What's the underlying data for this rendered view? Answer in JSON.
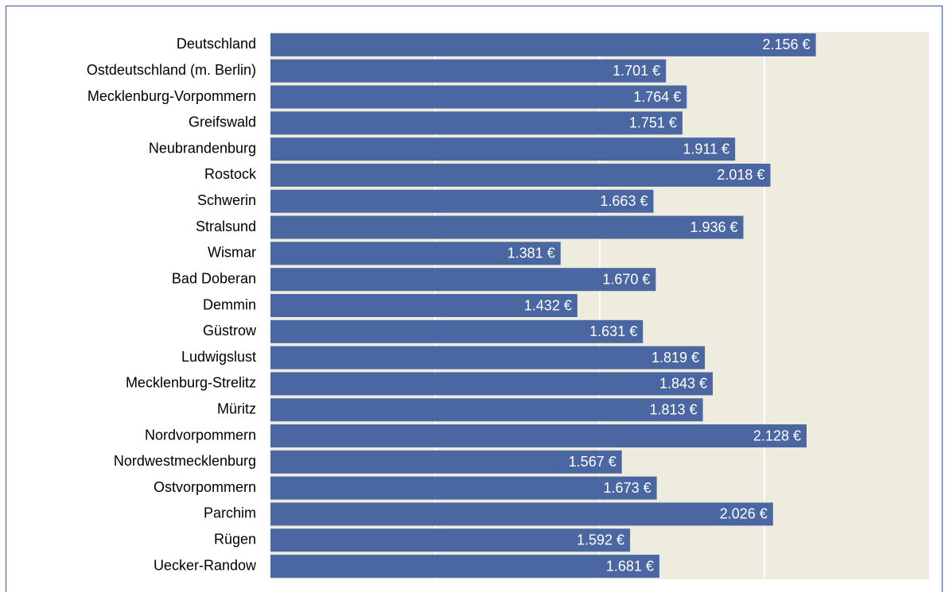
{
  "chart_data": {
    "type": "bar",
    "orientation": "horizontal",
    "categories": [
      "Deutschland",
      "Ostdeutschland (m. Berlin)",
      "Mecklenburg-Vorpommern",
      "Greifswald",
      "Neubrandenburg",
      "Rostock",
      "Schwerin",
      "Stralsund",
      "Wismar",
      "Bad Doberan",
      "Demmin",
      "Güstrow",
      "Ludwigslust",
      "Mecklenburg-Strelitz",
      "Müritz",
      "Nordvorpommern",
      "Nordwestmecklenburg",
      "Ostvorpommern",
      "Parchim",
      "Rügen",
      "Uecker-Randow"
    ],
    "values": [
      2156,
      1701,
      1764,
      1751,
      1911,
      2018,
      1663,
      1936,
      1381,
      1670,
      1432,
      1631,
      1819,
      1843,
      1813,
      2128,
      1567,
      1673,
      2026,
      1592,
      1681
    ],
    "value_labels": [
      "2.156 €",
      "1.701 €",
      "1.764 €",
      "1.751 €",
      "1.911 €",
      "2.018 €",
      "1.663 €",
      "1.936 €",
      "1.381 €",
      "1.670 €",
      "1.432 €",
      "1.631 €",
      "1.819 €",
      "1.843 €",
      "1.813 €",
      "2.128 €",
      "1.567 €",
      "1.673 €",
      "2.026 €",
      "1.592 €",
      "1.681 €"
    ],
    "color": "#4a67a1",
    "xlim": [
      500,
      2500
    ],
    "xticks": [
      1000,
      1500,
      2000
    ],
    "grid": true
  }
}
